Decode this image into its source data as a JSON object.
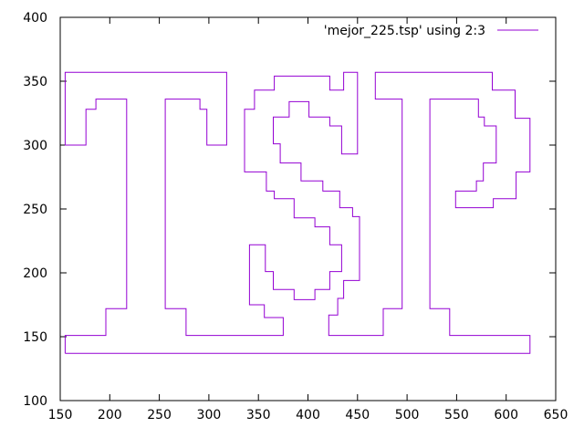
{
  "chart_data": {
    "type": "line",
    "title": "",
    "xlabel": "",
    "ylabel": "",
    "xlim": [
      150,
      650
    ],
    "ylim": [
      100,
      400
    ],
    "x_ticks": [
      150,
      200,
      250,
      300,
      350,
      400,
      450,
      500,
      550,
      600,
      650
    ],
    "y_ticks": [
      100,
      150,
      200,
      250,
      300,
      350,
      400
    ],
    "grid": false,
    "legend_position": "top-right",
    "series": [
      {
        "name": "'mejor_225.tsp' using 2:3",
        "color": "#9400d3",
        "points": [
          [
            155,
            137
          ],
          [
            155,
            151
          ],
          [
            196,
            151
          ],
          [
            196,
            172
          ],
          [
            217,
            172
          ],
          [
            217,
            336
          ],
          [
            186,
            336
          ],
          [
            186,
            328
          ],
          [
            176,
            328
          ],
          [
            176,
            300
          ],
          [
            155,
            300
          ],
          [
            155,
            357
          ],
          [
            318,
            357
          ],
          [
            318,
            300
          ],
          [
            298,
            300
          ],
          [
            298,
            328
          ],
          [
            291,
            328
          ],
          [
            291,
            336
          ],
          [
            256,
            336
          ],
          [
            256,
            172
          ],
          [
            277,
            172
          ],
          [
            277,
            151
          ],
          [
            375,
            151
          ],
          [
            375,
            165
          ],
          [
            356,
            165
          ],
          [
            356,
            175
          ],
          [
            341,
            175
          ],
          [
            341,
            222
          ],
          [
            357,
            222
          ],
          [
            357,
            201
          ],
          [
            365,
            201
          ],
          [
            365,
            187
          ],
          [
            386,
            187
          ],
          [
            386,
            179
          ],
          [
            407,
            179
          ],
          [
            407,
            187
          ],
          [
            422,
            187
          ],
          [
            422,
            201
          ],
          [
            434,
            201
          ],
          [
            434,
            222
          ],
          [
            422,
            222
          ],
          [
            422,
            236
          ],
          [
            407,
            236
          ],
          [
            407,
            243
          ],
          [
            386,
            243
          ],
          [
            386,
            258
          ],
          [
            366,
            258
          ],
          [
            366,
            264
          ],
          [
            358,
            264
          ],
          [
            358,
            279
          ],
          [
            336,
            279
          ],
          [
            336,
            328
          ],
          [
            346,
            328
          ],
          [
            346,
            343
          ],
          [
            366,
            343
          ],
          [
            366,
            354
          ],
          [
            422,
            354
          ],
          [
            422,
            343
          ],
          [
            436,
            343
          ],
          [
            436,
            357
          ],
          [
            450,
            357
          ],
          [
            450,
            293
          ],
          [
            434,
            293
          ],
          [
            434,
            315
          ],
          [
            422,
            315
          ],
          [
            422,
            322
          ],
          [
            401,
            322
          ],
          [
            401,
            334
          ],
          [
            381,
            334
          ],
          [
            381,
            322
          ],
          [
            365,
            322
          ],
          [
            365,
            301
          ],
          [
            372,
            301
          ],
          [
            372,
            286
          ],
          [
            393,
            286
          ],
          [
            393,
            272
          ],
          [
            415,
            272
          ],
          [
            415,
            264
          ],
          [
            432,
            264
          ],
          [
            432,
            251
          ],
          [
            445,
            251
          ],
          [
            445,
            244
          ],
          [
            452,
            244
          ],
          [
            452,
            194
          ],
          [
            436,
            194
          ],
          [
            436,
            180
          ],
          [
            430,
            180
          ],
          [
            430,
            167
          ],
          [
            421,
            167
          ],
          [
            421,
            151
          ],
          [
            476,
            151
          ],
          [
            476,
            172
          ],
          [
            495,
            172
          ],
          [
            495,
            336
          ],
          [
            468,
            336
          ],
          [
            468,
            357
          ],
          [
            586,
            357
          ],
          [
            586,
            343
          ],
          [
            609,
            343
          ],
          [
            609,
            321
          ],
          [
            624,
            321
          ],
          [
            624,
            279
          ],
          [
            610,
            279
          ],
          [
            610,
            258
          ],
          [
            587,
            258
          ],
          [
            587,
            251
          ],
          [
            549,
            251
          ],
          [
            549,
            264
          ],
          [
            570,
            264
          ],
          [
            570,
            272
          ],
          [
            577,
            272
          ],
          [
            577,
            286
          ],
          [
            590,
            286
          ],
          [
            590,
            315
          ],
          [
            578,
            315
          ],
          [
            578,
            322
          ],
          [
            572,
            322
          ],
          [
            572,
            336
          ],
          [
            523,
            336
          ],
          [
            523,
            172
          ],
          [
            543,
            172
          ],
          [
            543,
            151
          ],
          [
            624,
            151
          ],
          [
            624,
            137
          ],
          [
            155,
            137
          ]
        ]
      }
    ]
  }
}
